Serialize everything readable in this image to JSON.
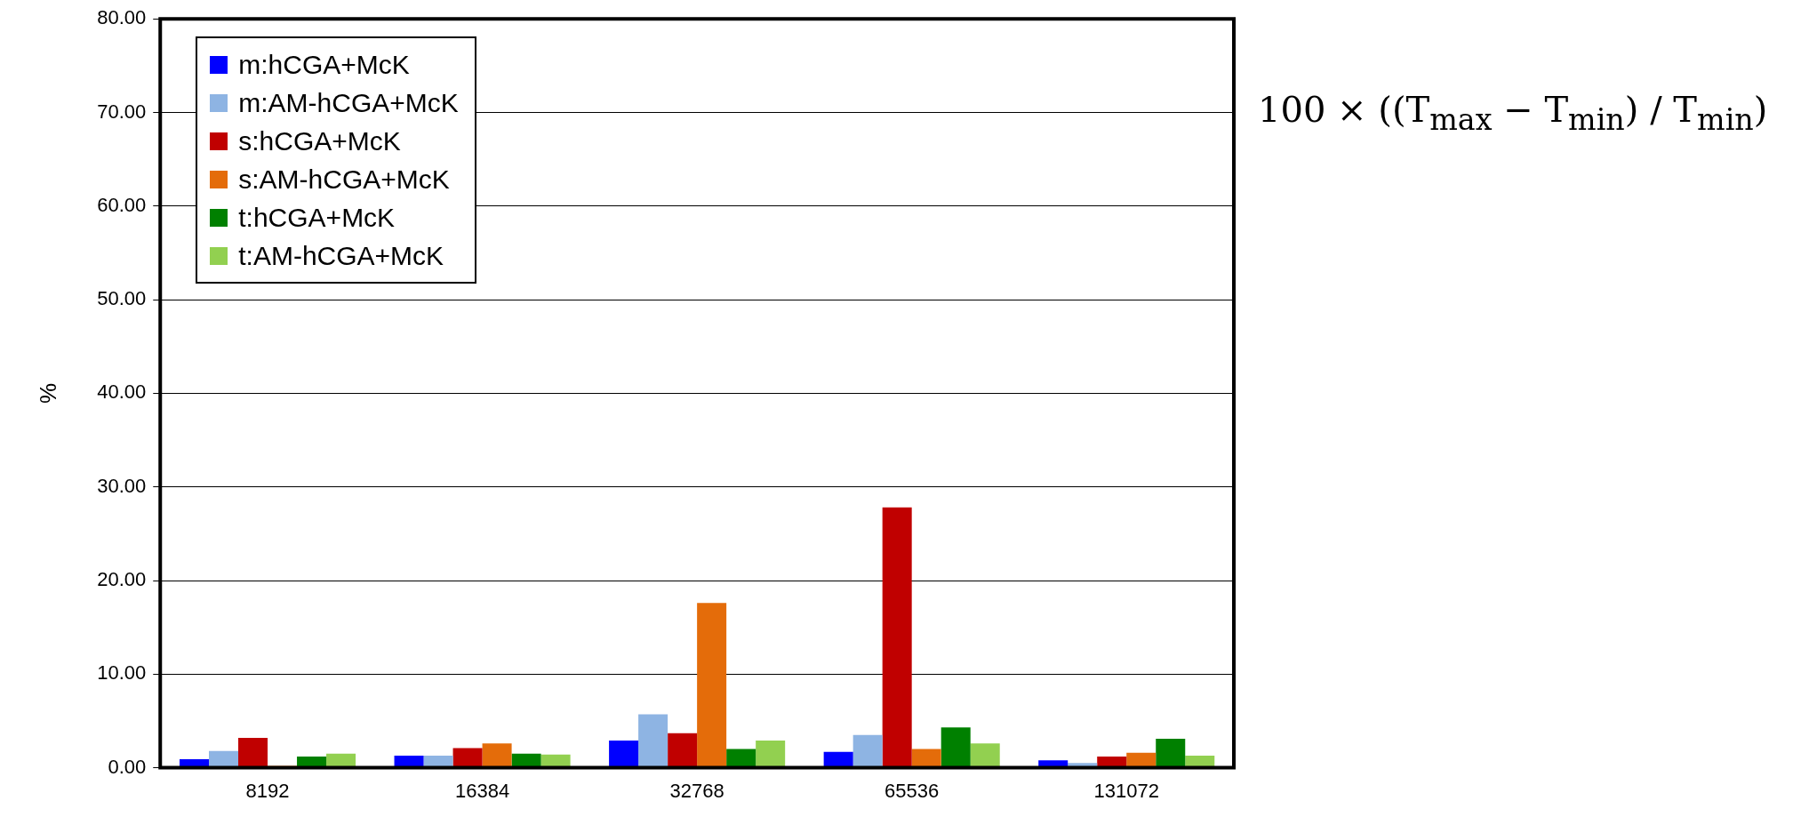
{
  "chart_data": {
    "type": "bar",
    "ylabel": "%",
    "categories": [
      "8192",
      "16384",
      "32768",
      "65536",
      "131072"
    ],
    "series": [
      {
        "name": "m:hCGA+McK",
        "color": "#0000ff",
        "values": [
          0.9,
          1.3,
          2.9,
          1.7,
          0.8
        ]
      },
      {
        "name": "m:AM-hCGA+McK",
        "color": "#8eb4e3",
        "values": [
          1.8,
          1.3,
          5.7,
          3.5,
          0.5
        ]
      },
      {
        "name": "s:hCGA+McK",
        "color": "#c00000",
        "values": [
          3.2,
          2.1,
          3.7,
          27.8,
          1.2
        ]
      },
      {
        "name": "s:AM-hCGA+McK",
        "color": "#e46c0a",
        "values": [
          0.2,
          2.6,
          17.6,
          2.0,
          1.6
        ]
      },
      {
        "name": "t:hCGA+McK",
        "color": "#008000",
        "values": [
          1.2,
          1.5,
          2.0,
          4.3,
          3.1
        ]
      },
      {
        "name": "t:AM-hCGA+McK",
        "color": "#92d050",
        "values": [
          1.5,
          1.4,
          2.9,
          2.6,
          1.3
        ]
      }
    ],
    "ylim": [
      0,
      80
    ],
    "yticks": [
      {
        "value": 0,
        "label": "0.00"
      },
      {
        "value": 10,
        "label": "10.00"
      },
      {
        "value": 20,
        "label": "20.00"
      },
      {
        "value": 30,
        "label": "30.00"
      },
      {
        "value": 40,
        "label": "40.00"
      },
      {
        "value": 50,
        "label": "50.00"
      },
      {
        "value": 60,
        "label": "60.00"
      },
      {
        "value": 70,
        "label": "70.00"
      },
      {
        "value": 80,
        "label": "80.00"
      }
    ],
    "grid": "y",
    "legend": "top left",
    "annotations": [
      "100 × ((T$_{max}$ − T$_{min}$) / T$_{min}$)"
    ]
  }
}
